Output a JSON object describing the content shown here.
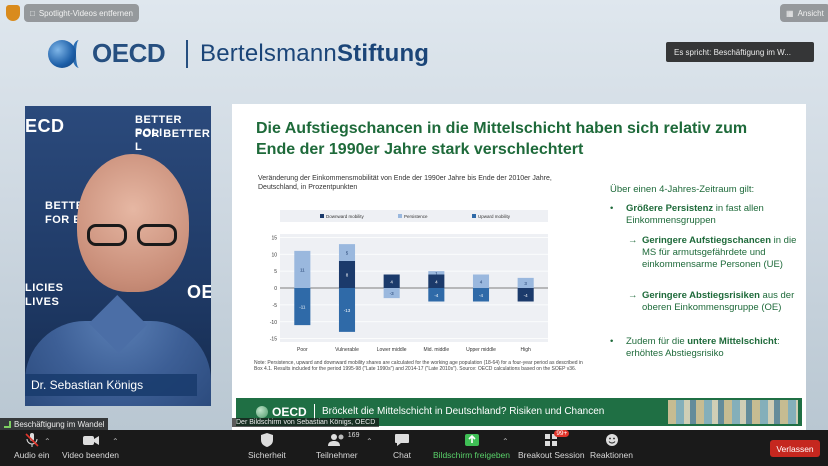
{
  "top": {
    "spotlight_label": "Spotlight-Videos entfernen",
    "view_label": "Ansicht",
    "speaking_label": "Es spricht: Beschäftigung im W..."
  },
  "banner": {
    "oecd": "OECD",
    "bs_regular": "Bertelsmann",
    "bs_bold": "Stiftung"
  },
  "camera": {
    "bg_text": [
      "BETTER POLI",
      "FOR BETTER L",
      "BETTE",
      "FOR B",
      "LICIES",
      "LIVES",
      "OE",
      "ECD"
    ],
    "name": "Dr. Sebastian Königs"
  },
  "slide": {
    "title": "Die Aufstiegschancen in die Mittelschicht haben sich relativ zum Ende der 1990er Jahre stark verschlechtert",
    "caption": "Veränderung der Einkommensmobilität von Ende der 1990er Jahre bis Ende der 2010er Jahre, Deutschland, in Prozentpunkten",
    "note": "Note: Persistence, upward and downward mobility shares are calculated for the working age population (18-64) for a four-year period as described in Box 4.1. Results included for the period 1995-98 (\"Late 1990s\") and 2014-17 (\"Late 2010s\"). Source: OECD calculations based on the SOEP v36.",
    "intro": "Über einen 4-Jahres-Zeitraum gilt:",
    "b1_bold": "Größere Persistenz",
    "b1_rest": " in fast allen Einkommensgruppen",
    "a1_bold": "Geringere Aufstiegschancen",
    "a1_rest": " in die MS für armutsgefährdete und einkommensarme Personen (UE)",
    "a2_bold": "Geringere Abstiegsrisiken",
    "a2_rest": " aus der oberen Einkommensgruppe (OE)",
    "b2_pre": "Zudem für die ",
    "b2_bold": "untere Mittelschicht",
    "b2_rest": ": erhöhtes Abstiegsrisiko",
    "footer_logo": "OECD",
    "footer_text": "Bröckelt die Mittelschicht in Deutschland? Risiken und Chancen"
  },
  "screen_label": "Der Bildschirm von Sebastian Königs, OECD",
  "meeting_tag": "Beschäftigung im Wandel",
  "toolbar": {
    "audio": "Audio ein",
    "video": "Video beenden",
    "security": "Sicherheit",
    "participants": "Teilnehmer",
    "participants_count": "169",
    "chat": "Chat",
    "share": "Bildschirm freigeben",
    "breakout": "Breakout Session",
    "breakout_badge": "99+",
    "reactions": "Reaktionen",
    "leave": "Verlassen"
  },
  "chart_data": {
    "type": "bar",
    "categories": [
      "Poor",
      "Vulnerable",
      "Lower middle",
      "Mid. middle",
      "Upper middle",
      "High"
    ],
    "series": [
      {
        "name": "Downward mobility",
        "color": "#1b3a6b",
        "values": [
          0,
          8,
          4,
          4,
          0,
          -4
        ]
      },
      {
        "name": "Persistence",
        "color": "#9ab8de",
        "values": [
          11,
          5,
          -3,
          1,
          4,
          3
        ]
      },
      {
        "name": "Upward mobility",
        "color": "#2f6aa8",
        "values": [
          -11,
          -13,
          0,
          -4,
          -4,
          0
        ]
      }
    ],
    "data_labels": [
      [
        "",
        "11",
        "-11"
      ],
      [
        "8",
        "5",
        "-13"
      ],
      [
        "4",
        "-3",
        ""
      ],
      [
        "4",
        "1",
        "-4"
      ],
      [
        "",
        "4",
        "-4"
      ],
      [
        "-4",
        "3",
        ""
      ]
    ],
    "yticks": [
      15,
      10,
      5,
      0,
      -5,
      -10,
      -15
    ],
    "ylim": [
      -16,
      16
    ],
    "legend_position": "top"
  }
}
